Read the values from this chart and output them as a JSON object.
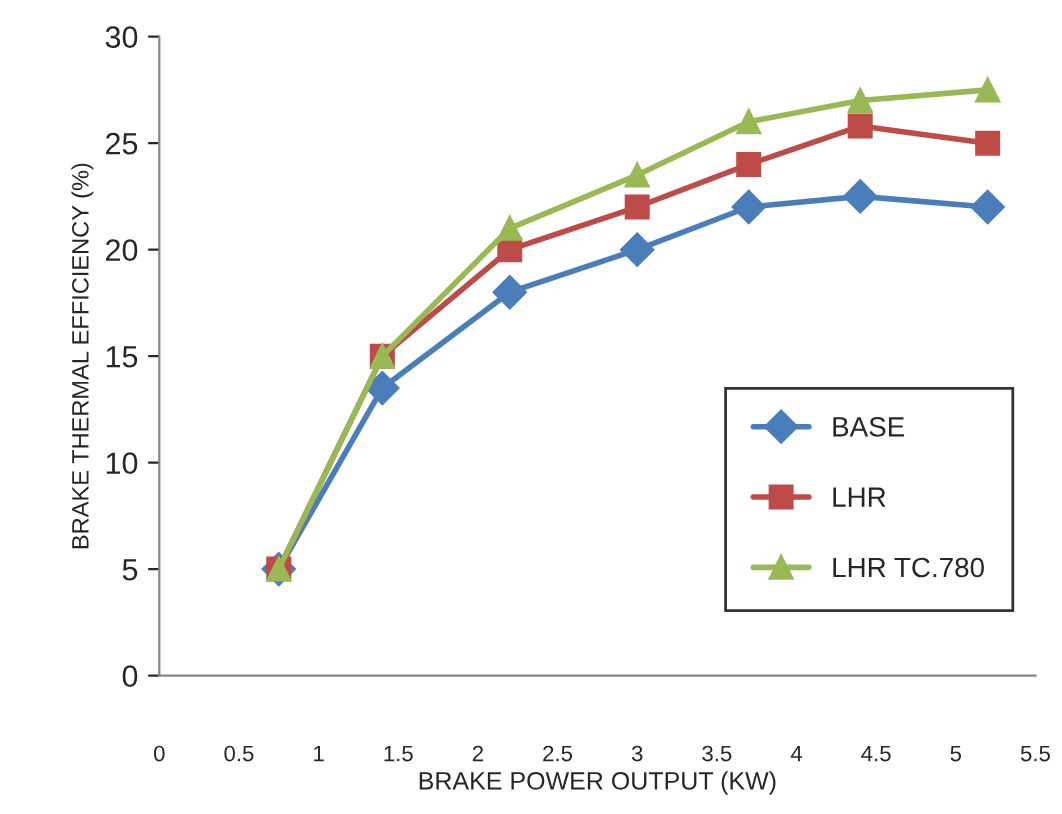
{
  "chart_data": {
    "type": "line",
    "xlabel": "BRAKE POWER OUTPUT (KW)",
    "ylabel": "BRAKE THERMAL EFFICIENCY (%)",
    "x": [
      0.75,
      1.4,
      2.2,
      3,
      3.7,
      4.4,
      5.2
    ],
    "series": [
      {
        "name": "BASE",
        "color": "#4a7ebb",
        "marker": "diamond",
        "values": [
          5,
          13.5,
          18,
          20,
          22,
          22.5,
          22
        ]
      },
      {
        "name": "LHR",
        "color": "#be4b48",
        "marker": "square",
        "values": [
          5,
          15,
          20,
          22,
          24,
          25.8,
          25
        ]
      },
      {
        "name": "LHR TC.780",
        "color": "#98b954",
        "marker": "triangle",
        "values": [
          5,
          15,
          21,
          23.5,
          26,
          27,
          27.5
        ]
      }
    ],
    "xlim": [
      0,
      5.5
    ],
    "xticks": [
      0,
      0.5,
      1,
      1.5,
      2,
      2.5,
      3,
      3.5,
      4,
      4.5,
      5,
      5.5
    ],
    "ylim": [
      0,
      30
    ],
    "yticks": [
      0,
      5,
      10,
      15,
      20,
      25,
      30
    ],
    "grid": false,
    "legend": "bottom right"
  }
}
